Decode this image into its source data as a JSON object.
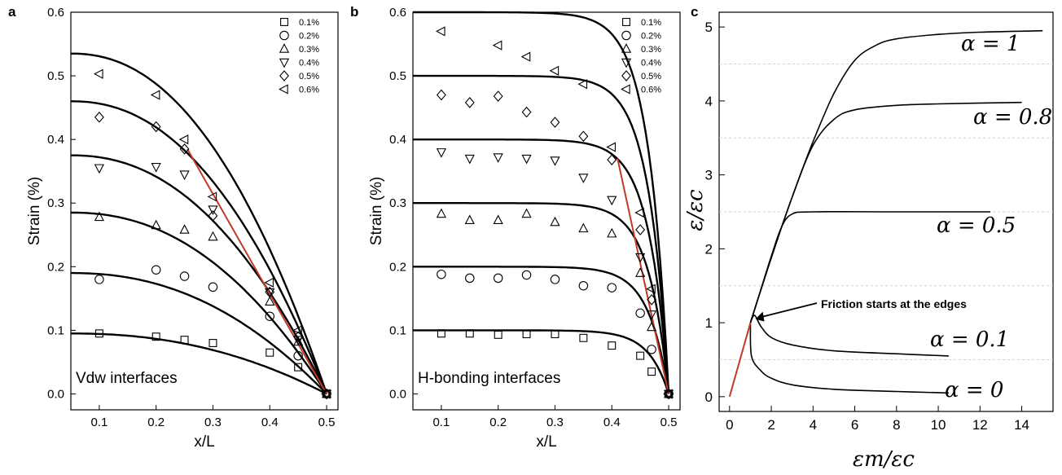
{
  "chart_data": [
    {
      "panel": "a",
      "type": "line",
      "xlabel": "x/L",
      "ylabel": "Strain (%)",
      "xlim": [
        0.05,
        0.52
      ],
      "ylim": [
        -0.025,
        0.6
      ],
      "xticks": [
        "0.1",
        "0.2",
        "0.3",
        "0.4",
        "0.5"
      ],
      "yticks": [
        "0.0",
        "0.1",
        "0.2",
        "0.3",
        "0.4",
        "0.5",
        "0.6"
      ],
      "annotation": "Vdw interfaces",
      "legend_position": "top-right",
      "series": [
        {
          "name": "0.1%",
          "marker": "square",
          "points": [
            [
              0.1,
              0.095
            ],
            [
              0.2,
              0.09
            ],
            [
              0.25,
              0.085
            ],
            [
              0.3,
              0.08
            ],
            [
              0.4,
              0.065
            ],
            [
              0.45,
              0.042
            ],
            [
              0.5,
              0.0
            ]
          ],
          "fit_peak": 0.095
        },
        {
          "name": "0.2%",
          "marker": "circle",
          "points": [
            [
              0.1,
              0.18
            ],
            [
              0.2,
              0.195
            ],
            [
              0.25,
              0.185
            ],
            [
              0.3,
              0.168
            ],
            [
              0.4,
              0.122
            ],
            [
              0.45,
              0.06
            ],
            [
              0.5,
              0.0
            ]
          ],
          "fit_peak": 0.19
        },
        {
          "name": "0.3%",
          "marker": "triangle-up",
          "points": [
            [
              0.1,
              0.278
            ],
            [
              0.2,
              0.265
            ],
            [
              0.25,
              0.258
            ],
            [
              0.3,
              0.247
            ],
            [
              0.4,
              0.145
            ],
            [
              0.45,
              0.082
            ],
            [
              0.5,
              0.0
            ]
          ],
          "fit_peak": 0.285
        },
        {
          "name": "0.4%",
          "marker": "triangle-down",
          "points": [
            [
              0.1,
              0.355
            ],
            [
              0.2,
              0.357
            ],
            [
              0.25,
              0.345
            ],
            [
              0.3,
              0.29
            ],
            [
              0.4,
              0.16
            ],
            [
              0.45,
              0.085
            ],
            [
              0.5,
              0.0
            ]
          ],
          "fit_peak": 0.375
        },
        {
          "name": "0.5%",
          "marker": "diamond",
          "points": [
            [
              0.1,
              0.435
            ],
            [
              0.2,
              0.42
            ],
            [
              0.25,
              0.385
            ],
            [
              0.3,
              0.28
            ],
            [
              0.4,
              0.16
            ],
            [
              0.45,
              0.09
            ],
            [
              0.5,
              0.0
            ]
          ],
          "fit_peak": 0.46
        },
        {
          "name": "0.6%",
          "marker": "triangle-left",
          "points": [
            [
              0.1,
              0.503
            ],
            [
              0.2,
              0.47
            ],
            [
              0.25,
              0.4
            ],
            [
              0.3,
              0.31
            ],
            [
              0.4,
              0.175
            ],
            [
              0.45,
              0.1
            ],
            [
              0.5,
              0.0
            ]
          ],
          "fit_peak": 0.535
        }
      ],
      "red_line": [
        [
          0.255,
          0.385
        ],
        [
          0.5,
          0.0
        ]
      ]
    },
    {
      "panel": "b",
      "type": "line",
      "xlabel": "x/L",
      "ylabel": "Strain (%)",
      "xlim": [
        0.05,
        0.52
      ],
      "ylim": [
        -0.025,
        0.6
      ],
      "xticks": [
        "0.1",
        "0.2",
        "0.3",
        "0.4",
        "0.5"
      ],
      "yticks": [
        "0.0",
        "0.1",
        "0.2",
        "0.3",
        "0.4",
        "0.5",
        "0.6"
      ],
      "annotation": "H-bonding interfaces",
      "legend_position": "top-right",
      "series": [
        {
          "name": "0.1%",
          "marker": "square",
          "points": [
            [
              0.1,
              0.095
            ],
            [
              0.15,
              0.095
            ],
            [
              0.2,
              0.093
            ],
            [
              0.25,
              0.094
            ],
            [
              0.3,
              0.094
            ],
            [
              0.35,
              0.088
            ],
            [
              0.4,
              0.076
            ],
            [
              0.45,
              0.06
            ],
            [
              0.47,
              0.035
            ],
            [
              0.5,
              0.0
            ]
          ],
          "fit_peak": 0.1
        },
        {
          "name": "0.2%",
          "marker": "circle",
          "points": [
            [
              0.1,
              0.188
            ],
            [
              0.15,
              0.182
            ],
            [
              0.2,
              0.182
            ],
            [
              0.25,
              0.187
            ],
            [
              0.3,
              0.18
            ],
            [
              0.35,
              0.17
            ],
            [
              0.4,
              0.167
            ],
            [
              0.45,
              0.127
            ],
            [
              0.47,
              0.07
            ],
            [
              0.5,
              0.0
            ]
          ],
          "fit_peak": 0.2
        },
        {
          "name": "0.3%",
          "marker": "triangle-up",
          "points": [
            [
              0.1,
              0.283
            ],
            [
              0.15,
              0.273
            ],
            [
              0.2,
              0.273
            ],
            [
              0.25,
              0.283
            ],
            [
              0.3,
              0.27
            ],
            [
              0.35,
              0.26
            ],
            [
              0.4,
              0.252
            ],
            [
              0.45,
              0.19
            ],
            [
              0.47,
              0.105
            ],
            [
              0.5,
              0.0
            ]
          ],
          "fit_peak": 0.3
        },
        {
          "name": "0.4%",
          "marker": "triangle-down",
          "points": [
            [
              0.1,
              0.38
            ],
            [
              0.15,
              0.37
            ],
            [
              0.2,
              0.372
            ],
            [
              0.25,
              0.37
            ],
            [
              0.3,
              0.367
            ],
            [
              0.35,
              0.34
            ],
            [
              0.4,
              0.305
            ],
            [
              0.45,
              0.215
            ],
            [
              0.47,
              0.125
            ],
            [
              0.5,
              0.0
            ]
          ],
          "fit_peak": 0.4
        },
        {
          "name": "0.5%",
          "marker": "diamond",
          "points": [
            [
              0.1,
              0.47
            ],
            [
              0.15,
              0.458
            ],
            [
              0.2,
              0.468
            ],
            [
              0.25,
              0.443
            ],
            [
              0.3,
              0.427
            ],
            [
              0.35,
              0.405
            ],
            [
              0.4,
              0.368
            ],
            [
              0.45,
              0.258
            ],
            [
              0.47,
              0.148
            ],
            [
              0.5,
              0.0
            ]
          ],
          "fit_peak": 0.5
        },
        {
          "name": "0.6%",
          "marker": "triangle-left",
          "points": [
            [
              0.1,
              0.57
            ],
            [
              0.2,
              0.548
            ],
            [
              0.25,
              0.53
            ],
            [
              0.3,
              0.508
            ],
            [
              0.35,
              0.487
            ],
            [
              0.4,
              0.388
            ],
            [
              0.45,
              0.285
            ],
            [
              0.47,
              0.165
            ],
            [
              0.5,
              0.0
            ]
          ],
          "fit_peak": 0.6
        }
      ],
      "red_line": [
        [
          0.41,
          0.37
        ],
        [
          0.5,
          0.0
        ]
      ]
    },
    {
      "panel": "c",
      "type": "line",
      "xlabel": "εm/εc",
      "ylabel": "ε/εc",
      "xlim": [
        -0.5,
        15.5
      ],
      "ylim": [
        -0.2,
        5.2
      ],
      "xticks": [
        "0",
        "2",
        "4",
        "6",
        "8",
        "10",
        "12",
        "14"
      ],
      "yticks": [
        "0",
        "1",
        "2",
        "3",
        "4",
        "5"
      ],
      "annotation": "Friction starts at the edges",
      "gridlines_y": [
        0.5,
        1.5,
        2.5,
        3.5,
        4.5
      ],
      "series": [
        {
          "name": "α = 1",
          "points": [
            [
              1,
              1
            ],
            [
              2,
              1.88
            ],
            [
              3,
              2.7
            ],
            [
              4,
              3.45
            ],
            [
              5,
              4.1
            ],
            [
              6,
              4.55
            ],
            [
              7,
              4.75
            ],
            [
              8,
              4.84
            ],
            [
              10,
              4.9
            ],
            [
              12,
              4.93
            ],
            [
              15,
              4.95
            ]
          ]
        },
        {
          "name": "α = 0.8",
          "points": [
            [
              1,
              1
            ],
            [
              2,
              1.88
            ],
            [
              3,
              2.7
            ],
            [
              4,
              3.4
            ],
            [
              5,
              3.75
            ],
            [
              6,
              3.88
            ],
            [
              8,
              3.94
            ],
            [
              10,
              3.96
            ],
            [
              14,
              3.98
            ]
          ]
        },
        {
          "name": "α = 0.5",
          "points": [
            [
              1,
              1
            ],
            [
              1.5,
              1.45
            ],
            [
              2,
              1.9
            ],
            [
              2.5,
              2.3
            ],
            [
              3,
              2.47
            ],
            [
              4,
              2.5
            ],
            [
              8,
              2.5
            ],
            [
              12.5,
              2.5
            ]
          ]
        },
        {
          "name": "α = 0.1",
          "points": [
            [
              1,
              1
            ],
            [
              1.2,
              1.1
            ],
            [
              1.5,
              0.95
            ],
            [
              2,
              0.8
            ],
            [
              3,
              0.7
            ],
            [
              5,
              0.62
            ],
            [
              8,
              0.58
            ],
            [
              10.5,
              0.55
            ]
          ]
        },
        {
          "name": "α = 0",
          "points": [
            [
              1,
              1
            ],
            [
              1.05,
              0.55
            ],
            [
              1.5,
              0.35
            ],
            [
              2,
              0.25
            ],
            [
              3,
              0.16
            ],
            [
              5,
              0.1
            ],
            [
              8,
              0.07
            ],
            [
              10.5,
              0.05
            ]
          ]
        }
      ],
      "red_line": [
        [
          0,
          0
        ],
        [
          1,
          1
        ]
      ]
    }
  ],
  "panels": {
    "a": "a",
    "b": "b",
    "c": "c"
  },
  "legend_labels": [
    "0.1%",
    "0.2%",
    "0.3%",
    "0.4%",
    "0.5%",
    "0.6%"
  ],
  "colors": {
    "line": "#000000",
    "red_line": "#c0392b",
    "grid": "#cfcfcf"
  }
}
